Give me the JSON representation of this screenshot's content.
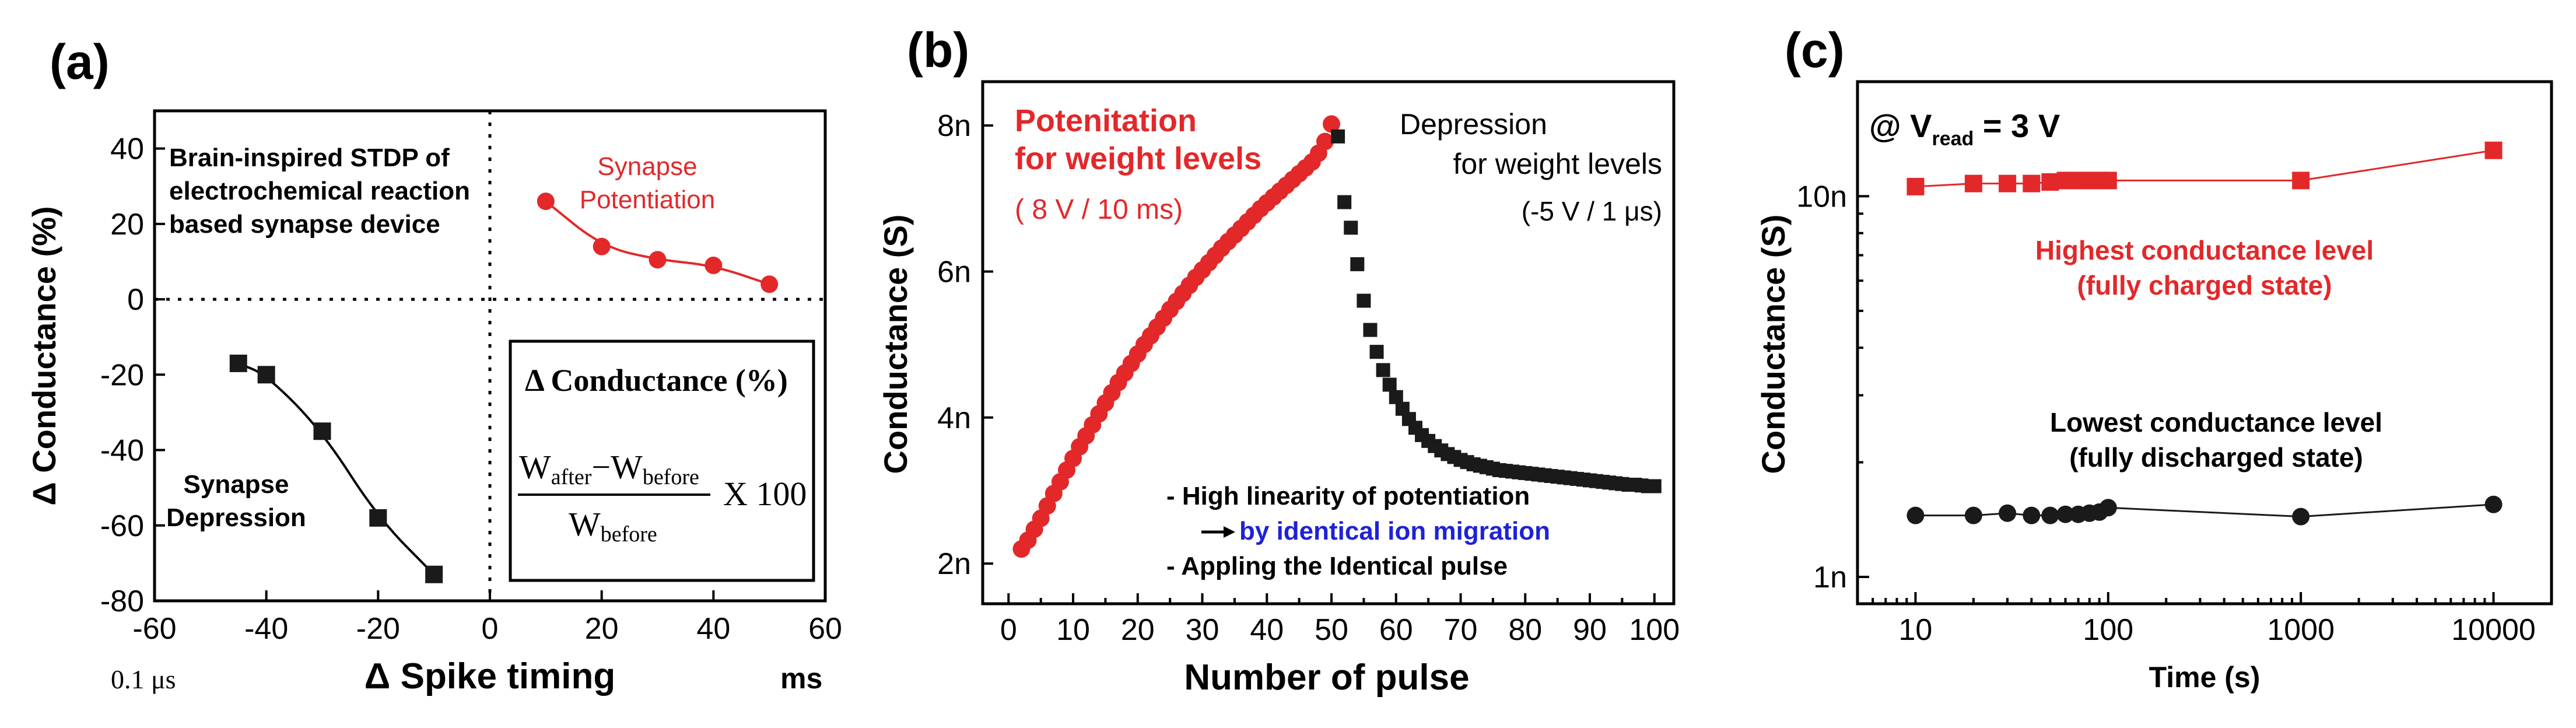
{
  "colors": {
    "red": "#e3282a",
    "black": "#1a1a1a",
    "blue": "#1e22d6"
  },
  "chart_data": [
    {
      "panel": "(a)",
      "type": "scatter",
      "title": "",
      "xlabel": "Δ Spike timing",
      "ylabel": "Δ Conductance (%)",
      "xlim": [
        -60,
        60
      ],
      "ylim": [
        -80,
        50
      ],
      "xticks": [
        "-60",
        "-40",
        "-20",
        "0",
        "20",
        "40",
        "60"
      ],
      "yticks": [
        "40",
        "20",
        "0",
        "-20",
        "-40",
        "-60",
        "-80"
      ],
      "x_unit_left": "0.1 μs",
      "x_unit_right": "ms",
      "description_lines": [
        "Brain-inspired STDP of",
        "electrochemical reaction",
        "based synapse device"
      ],
      "series": [
        {
          "name_lines": [
            "Synapse",
            "Potentiation"
          ],
          "marker": "circle",
          "color": "#e3282a",
          "x": [
            10,
            20,
            30,
            40,
            50
          ],
          "y": [
            26,
            14,
            10.5,
            9,
            4
          ]
        },
        {
          "name_lines": [
            "Synapse",
            "Depression"
          ],
          "marker": "square",
          "color": "#1a1a1a",
          "x": [
            -45,
            -40,
            -30,
            -20,
            -10
          ],
          "y": [
            -17,
            -20,
            -35,
            -58,
            -73
          ]
        }
      ],
      "formula": {
        "title": "Δ Conductance (%)",
        "numerator": "W",
        "after": "after",
        "minus": "−W",
        "before": "before",
        "denominator": "W",
        "multiplier": "X 100"
      }
    },
    {
      "panel": "(b)",
      "type": "scatter",
      "title": "",
      "xlabel": "Number of pulse",
      "ylabel": "Conductance (S)",
      "xlim": [
        -4,
        103
      ],
      "ylim": [
        1.45,
        8.6
      ],
      "xticks": [
        "0",
        "10",
        "20",
        "30",
        "40",
        "50",
        "60",
        "70",
        "80",
        "90",
        "100"
      ],
      "yticks": [
        "2n",
        "4n",
        "6n",
        "8n"
      ],
      "potentiation_label": [
        "Potenitation",
        "for weight levels"
      ],
      "potentiation_condition": "( 8 V / 10 ms)",
      "depression_label": [
        "Depression",
        "for weight levels"
      ],
      "depression_condition": "(-5 V / 1 μs)",
      "notes": [
        "- High linearity of potentiation",
        "by identical ion migration",
        "- Appling the Identical pulse"
      ],
      "series": [
        {
          "name": "Potentiation",
          "marker": "circle",
          "color": "#e3282a",
          "x_start": 2,
          "x_end": 50,
          "y": [
            2.2,
            2.32,
            2.47,
            2.62,
            2.79,
            2.96,
            3.12,
            3.28,
            3.44,
            3.6,
            3.75,
            3.9,
            4.05,
            4.2,
            4.34,
            4.48,
            4.61,
            4.74,
            4.87,
            5.0,
            5.12,
            5.24,
            5.36,
            5.48,
            5.59,
            5.7,
            5.81,
            5.92,
            6.02,
            6.12,
            6.22,
            6.32,
            6.41,
            6.5,
            6.59,
            6.68,
            6.77,
            6.86,
            6.94,
            7.02,
            7.1,
            7.18,
            7.26,
            7.34,
            7.42,
            7.5,
            7.62,
            7.78,
            8.02
          ]
        },
        {
          "name": "Depression",
          "marker": "square",
          "color": "#1a1a1a",
          "x_start": 51,
          "x_end": 100,
          "y": [
            7.85,
            6.95,
            6.6,
            6.1,
            5.6,
            5.2,
            4.9,
            4.65,
            4.45,
            4.28,
            4.12,
            3.98,
            3.86,
            3.76,
            3.68,
            3.61,
            3.55,
            3.5,
            3.46,
            3.42,
            3.39,
            3.36,
            3.34,
            3.32,
            3.3,
            3.28,
            3.27,
            3.26,
            3.25,
            3.24,
            3.23,
            3.22,
            3.21,
            3.2,
            3.19,
            3.18,
            3.17,
            3.16,
            3.15,
            3.14,
            3.13,
            3.12,
            3.11,
            3.1,
            3.09,
            3.08,
            3.08,
            3.07,
            3.06,
            3.06
          ]
        }
      ]
    },
    {
      "panel": "(c)",
      "type": "line",
      "title": "",
      "xlabel": "Time (s)",
      "ylabel": "Conductance (S)",
      "xscale": "log",
      "yscale": "log",
      "xlim": [
        5,
        20000
      ],
      "ylim": [
        0.85,
        20
      ],
      "xticks": [
        "10",
        "100",
        "1000",
        "10000"
      ],
      "yticks": [
        "10n",
        "1n"
      ],
      "condition": {
        "prefix": "@ V",
        "sub": "read",
        "suffix": " = 3 V"
      },
      "series": [
        {
          "name_lines": [
            "Highest conductance level",
            "(fully charged state)"
          ],
          "marker": "square",
          "color": "#e3282a",
          "x": [
            10,
            20,
            30,
            40,
            50,
            60,
            70,
            80,
            90,
            100,
            1000,
            10000
          ],
          "y": [
            10.6,
            10.8,
            10.8,
            10.8,
            10.9,
            11,
            11,
            11,
            11,
            11,
            11,
            13.2
          ]
        },
        {
          "name_lines": [
            "Lowest conductance level",
            "(fully discharged state)"
          ],
          "marker": "circle",
          "color": "#1a1a1a",
          "x": [
            10,
            20,
            30,
            40,
            50,
            60,
            70,
            80,
            90,
            100,
            1000,
            10000
          ],
          "y": [
            1.45,
            1.45,
            1.47,
            1.45,
            1.45,
            1.46,
            1.46,
            1.47,
            1.48,
            1.52,
            1.44,
            1.55
          ]
        }
      ]
    }
  ]
}
